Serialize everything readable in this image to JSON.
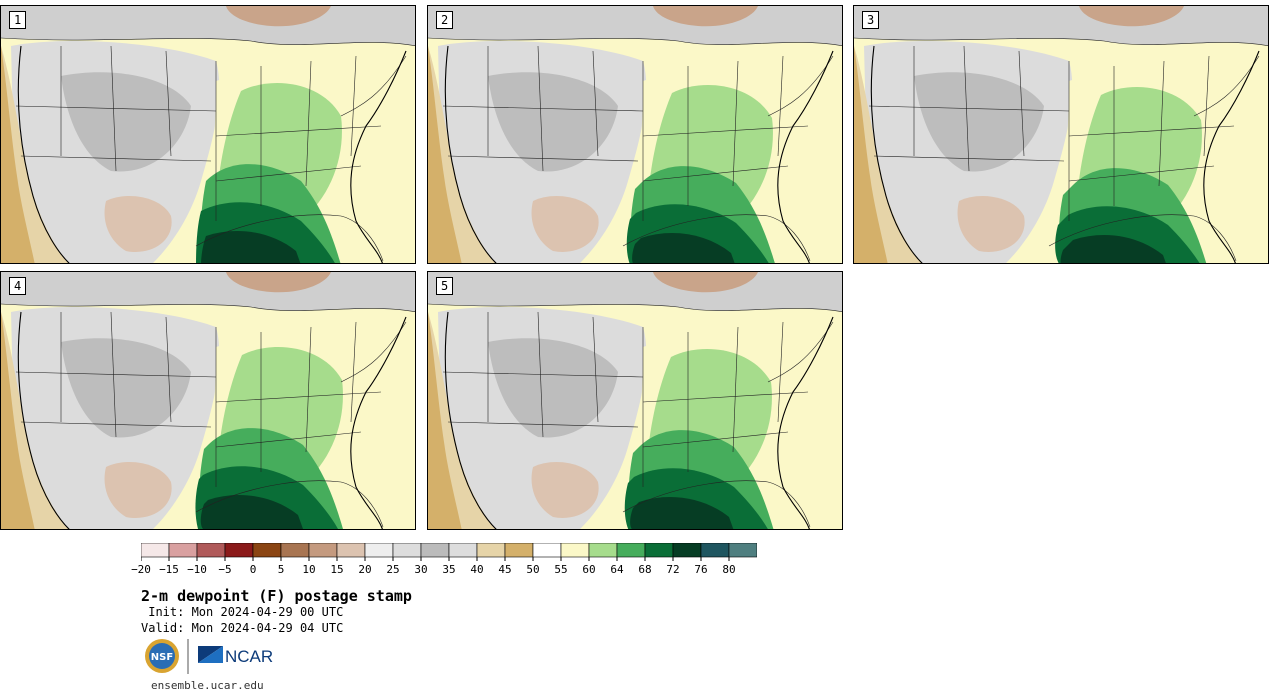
{
  "title": "2-m dewpoint (F) postage stamp",
  "init": " Init: Mon 2024-04-29 00 UTC",
  "valid": "Valid: Mon 2024-04-29 04 UTC",
  "website": "ensemble.ucar.edu",
  "logos": {
    "nsf": "NSF",
    "ncar": "NCAR"
  },
  "panels": [
    {
      "label": "1"
    },
    {
      "label": "2"
    },
    {
      "label": "3"
    },
    {
      "label": "4"
    },
    {
      "label": "5"
    }
  ],
  "colorbar": {
    "ticks": [
      "−20",
      "−15",
      "−10",
      "−5",
      "0",
      "5",
      "10",
      "15",
      "20",
      "25",
      "30",
      "35",
      "40",
      "45",
      "50",
      "55",
      "60",
      "64",
      "68",
      "72",
      "76",
      "80"
    ],
    "colors": [
      "#f5e8e8",
      "#d9a0a0",
      "#b05a5a",
      "#8b1a1a",
      "#8b4513",
      "#a87552",
      "#c49a7f",
      "#dcc3b0",
      "#eeeeee",
      "#dddddd",
      "#bbbbbb",
      "#dddddd",
      "#e6d4a8",
      "#d4b06a",
      "#ffffff",
      "#fbf8c8",
      "#a6dc8c",
      "#46ad5c",
      "#0a6e37",
      "#063d24",
      "#1f5660",
      "#4f7f80"
    ]
  }
}
